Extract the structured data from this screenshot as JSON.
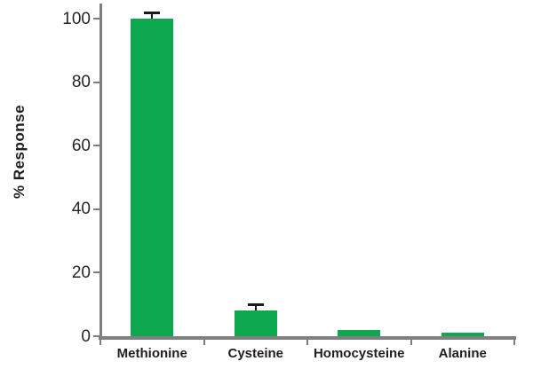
{
  "chart_data": {
    "type": "bar",
    "title": "",
    "xlabel": "",
    "ylabel": "% Response",
    "categories": [
      "Methionine",
      "Cysteine",
      "Homocysteine",
      "Alanine"
    ],
    "values": [
      100,
      8,
      2,
      1
    ],
    "errors": [
      2,
      2,
      0,
      0
    ],
    "ylim": [
      0,
      100
    ],
    "yticks": [
      0,
      20,
      40,
      60,
      80,
      100
    ],
    "grid": false,
    "legend_position": "none",
    "bar_color": "#0da750",
    "axis_color": "#7f7f7f",
    "error_bar_color": "#1a1a1a",
    "text_color": "#1f1f1f"
  }
}
